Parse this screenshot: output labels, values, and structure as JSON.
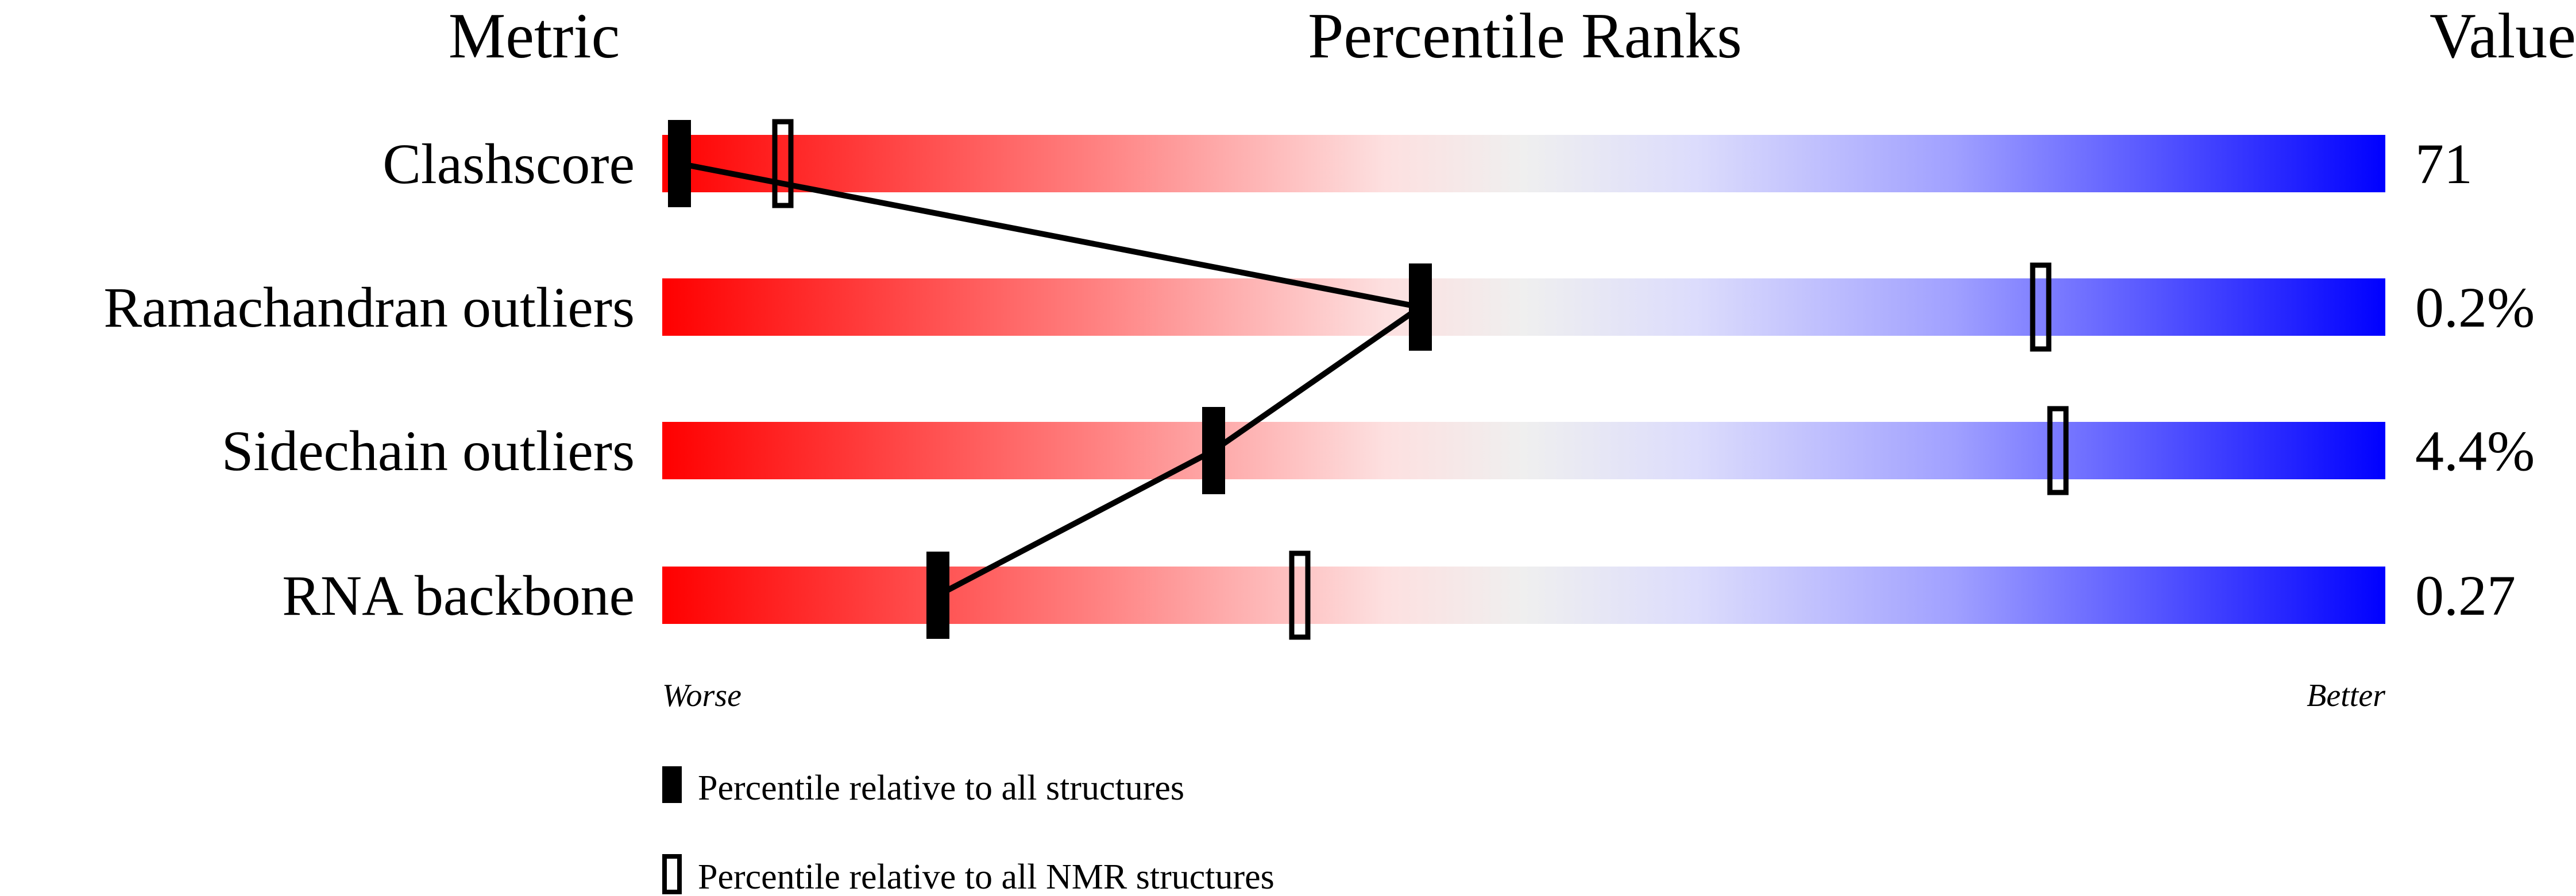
{
  "chart_data": {
    "type": "percentile-slider",
    "headers": {
      "metric": "Metric",
      "ranks": "Percentile Ranks",
      "value": "Value"
    },
    "axis": {
      "left": "Worse",
      "right": "Better",
      "range": [
        0,
        100
      ]
    },
    "gradient_colors": [
      "#ff0000",
      "#f0f0f0",
      "#0000ff"
    ],
    "metrics": [
      {
        "name": "Clashscore",
        "value": "71",
        "percentile_all": 1,
        "percentile_nmr": 7
      },
      {
        "name": "Ramachandran outliers",
        "value": "0.2%",
        "percentile_all": 44,
        "percentile_nmr": 80
      },
      {
        "name": "Sidechain outliers",
        "value": "4.4%",
        "percentile_all": 32,
        "percentile_nmr": 81
      },
      {
        "name": "RNA backbone",
        "value": "0.27",
        "percentile_all": 16,
        "percentile_nmr": 37
      }
    ],
    "legend": {
      "all": "Percentile relative to all structures",
      "nmr": "Percentile relative to all NMR structures"
    }
  }
}
